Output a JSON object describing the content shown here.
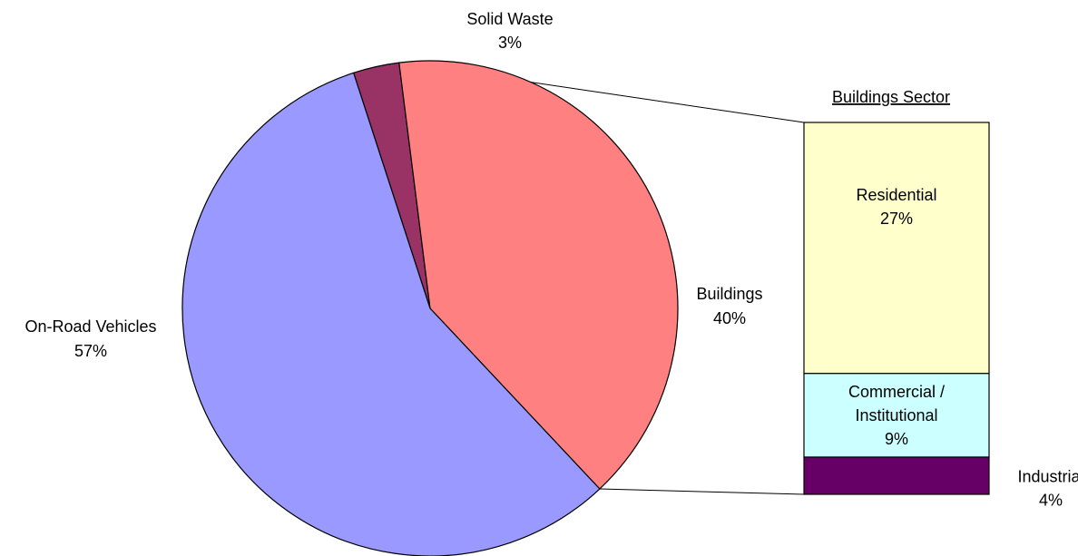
{
  "chart_data": [
    {
      "type": "pie",
      "title": "",
      "slices": [
        {
          "name": "Solid Waste",
          "label_value": "3%",
          "value": 3,
          "color": "#993366"
        },
        {
          "name": "Buildings",
          "label_value": "40%",
          "value": 40,
          "color": "#FF8080"
        },
        {
          "name": "On-Road Vehicles",
          "label_value": "57%",
          "value": 57,
          "color": "#9999FF"
        }
      ],
      "exploded_slice": "Buildings",
      "legend": "none"
    },
    {
      "type": "bar",
      "subtype": "stacked-100",
      "title": "Buildings Sector",
      "segments": [
        {
          "name": "Residential",
          "label_value": "27%",
          "value": 27,
          "color": "#FFFFCC"
        },
        {
          "name": "Commercial / Institutional",
          "name_lines": [
            "Commercial /",
            "Institutional"
          ],
          "label_value": "9%",
          "value": 9,
          "color": "#CCFFFF"
        },
        {
          "name": "Industrial",
          "label_value": "4%",
          "value": 4,
          "color": "#660066"
        }
      ],
      "legend": "none"
    }
  ]
}
